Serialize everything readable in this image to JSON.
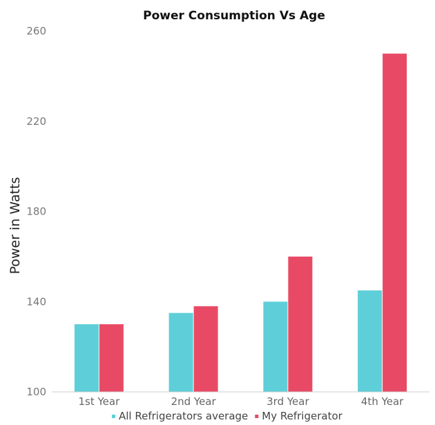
{
  "chart_data": {
    "type": "bar",
    "title": "Power Consumption Vs Age",
    "xlabel": "",
    "ylabel": "Power in Watts",
    "categories": [
      "1st Year",
      "2nd Year",
      "3rd Year",
      "4th Year"
    ],
    "series": [
      {
        "name": "All Refrigerators average",
        "values": [
          130,
          135,
          140,
          145
        ],
        "color": "#5ecfd9"
      },
      {
        "name": "My Refrigerator",
        "values": [
          130,
          138,
          160,
          250
        ],
        "color": "#e84a65"
      }
    ],
    "ylim": [
      100,
      260
    ],
    "yticks": [
      100,
      140,
      180,
      220,
      260
    ],
    "grid": false,
    "legend": "bottom"
  }
}
